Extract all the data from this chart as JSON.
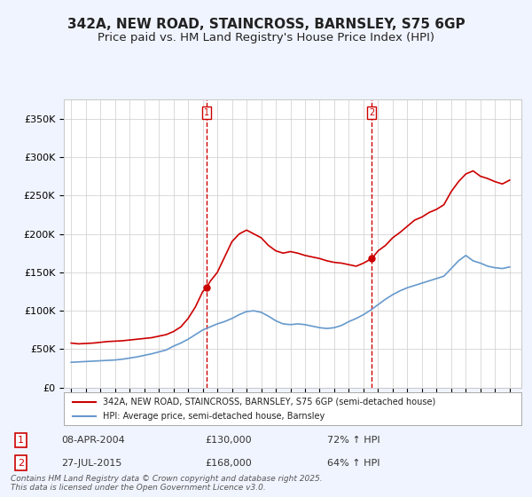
{
  "title": "342A, NEW ROAD, STAINCROSS, BARNSLEY, S75 6GP",
  "subtitle": "Price paid vs. HM Land Registry's House Price Index (HPI)",
  "title_fontsize": 11,
  "subtitle_fontsize": 9.5,
  "red_line_label": "342A, NEW ROAD, STAINCROSS, BARNSLEY, S75 6GP (semi-detached house)",
  "blue_line_label": "HPI: Average price, semi-detached house, Barnsley",
  "annotation1_date": "08-APR-2004",
  "annotation1_price": "£130,000",
  "annotation1_hpi": "72% ↑ HPI",
  "annotation2_date": "27-JUL-2015",
  "annotation2_price": "£168,000",
  "annotation2_hpi": "64% ↑ HPI",
  "footer": "Contains HM Land Registry data © Crown copyright and database right 2025.\nThis data is licensed under the Open Government Licence v3.0.",
  "vline1_x": 2004.27,
  "vline2_x": 2015.57,
  "marker1_red_y": 130000,
  "marker2_red_y": 168000,
  "ylim": [
    0,
    375000
  ],
  "xlim": [
    1994.5,
    2025.8
  ],
  "background_color": "#f0f4ff",
  "plot_bg_color": "#ffffff",
  "red_color": "#cc0000",
  "blue_color": "#6699cc",
  "vline_color": "#cc0000",
  "grid_color": "#cccccc",
  "red_data_x": [
    1995.0,
    1995.5,
    1996.0,
    1996.5,
    1997.0,
    1997.5,
    1998.0,
    1998.5,
    1999.0,
    1999.5,
    2000.0,
    2000.5,
    2001.0,
    2001.5,
    2002.0,
    2002.5,
    2003.0,
    2003.5,
    2004.0,
    2004.27,
    2004.5,
    2005.0,
    2005.5,
    2006.0,
    2006.5,
    2007.0,
    2007.5,
    2008.0,
    2008.5,
    2009.0,
    2009.5,
    2010.0,
    2010.5,
    2011.0,
    2011.5,
    2012.0,
    2012.5,
    2013.0,
    2013.5,
    2014.0,
    2014.5,
    2015.0,
    2015.57,
    2016.0,
    2016.5,
    2017.0,
    2017.5,
    2018.0,
    2018.5,
    2019.0,
    2019.5,
    2020.0,
    2020.5,
    2021.0,
    2021.5,
    2022.0,
    2022.5,
    2023.0,
    2023.5,
    2024.0,
    2024.5,
    2025.0
  ],
  "red_data_y": [
    58000,
    57000,
    57500,
    58000,
    59000,
    60000,
    60500,
    61000,
    62000,
    63000,
    64000,
    65000,
    67000,
    69000,
    73000,
    79000,
    90000,
    105000,
    125000,
    130000,
    138000,
    150000,
    170000,
    190000,
    200000,
    205000,
    200000,
    195000,
    185000,
    178000,
    175000,
    177000,
    175000,
    172000,
    170000,
    168000,
    165000,
    163000,
    162000,
    160000,
    158000,
    162000,
    168000,
    178000,
    185000,
    195000,
    202000,
    210000,
    218000,
    222000,
    228000,
    232000,
    238000,
    255000,
    268000,
    278000,
    282000,
    275000,
    272000,
    268000,
    265000,
    270000
  ],
  "blue_data_x": [
    1995.0,
    1995.5,
    1996.0,
    1996.5,
    1997.0,
    1997.5,
    1998.0,
    1998.5,
    1999.0,
    1999.5,
    2000.0,
    2000.5,
    2001.0,
    2001.5,
    2002.0,
    2002.5,
    2003.0,
    2003.5,
    2004.0,
    2004.5,
    2005.0,
    2005.5,
    2006.0,
    2006.5,
    2007.0,
    2007.5,
    2008.0,
    2008.5,
    2009.0,
    2009.5,
    2010.0,
    2010.5,
    2011.0,
    2011.5,
    2012.0,
    2012.5,
    2013.0,
    2013.5,
    2014.0,
    2014.5,
    2015.0,
    2015.5,
    2016.0,
    2016.5,
    2017.0,
    2017.5,
    2018.0,
    2018.5,
    2019.0,
    2019.5,
    2020.0,
    2020.5,
    2021.0,
    2021.5,
    2022.0,
    2022.5,
    2023.0,
    2023.5,
    2024.0,
    2024.5,
    2025.0
  ],
  "blue_data_y": [
    33000,
    33500,
    34000,
    34500,
    35000,
    35500,
    36000,
    37000,
    38500,
    40000,
    42000,
    44000,
    46500,
    49000,
    54000,
    58000,
    63000,
    69000,
    75000,
    79000,
    83000,
    86000,
    90000,
    95000,
    99000,
    100000,
    98000,
    93000,
    87000,
    83000,
    82000,
    83000,
    82000,
    80000,
    78000,
    77000,
    78000,
    81000,
    86000,
    90000,
    95000,
    101000,
    108000,
    115000,
    121000,
    126000,
    130000,
    133000,
    136000,
    139000,
    142000,
    145000,
    155000,
    165000,
    172000,
    165000,
    162000,
    158000,
    156000,
    155000,
    157000
  ]
}
